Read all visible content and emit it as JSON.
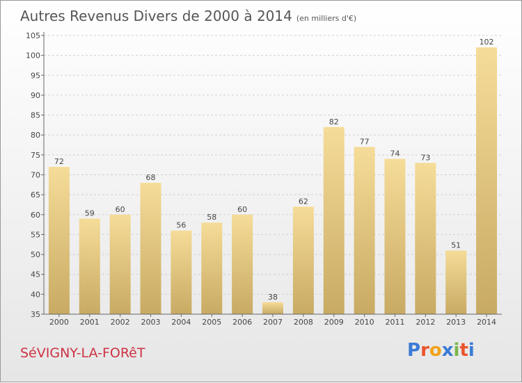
{
  "header": {
    "title": "Autres Revenus Divers de 2000 à 2014",
    "subtitle": "(en milliers d'€)"
  },
  "place_name": "SéVIGNY-LA-FORêT",
  "logo": {
    "letters": [
      "P",
      "r",
      "o",
      "x",
      "i",
      "t",
      "i"
    ],
    "colors": [
      "#3a7bd5",
      "#e9542b",
      "#f2a21b",
      "#3a7bd5",
      "#7ab648",
      "#e9542b",
      "#3a7bd5"
    ]
  },
  "chart_data": {
    "type": "bar",
    "categories": [
      "2000",
      "2001",
      "2002",
      "2003",
      "2004",
      "2005",
      "2006",
      "2007",
      "2008",
      "2009",
      "2010",
      "2011",
      "2012",
      "2013",
      "2014"
    ],
    "values": [
      72,
      59,
      60,
      68,
      56,
      58,
      60,
      38,
      62,
      82,
      77,
      74,
      73,
      51,
      102
    ],
    "title": "Autres Revenus Divers de 2000 à 2014",
    "ylim": [
      35,
      105
    ],
    "yticks": [
      35,
      40,
      45,
      50,
      55,
      60,
      65,
      70,
      75,
      80,
      85,
      90,
      95,
      100,
      105
    ],
    "grid": true,
    "bar_color_top": "#f5dc98",
    "bar_color_bottom": "#c8aa63"
  }
}
